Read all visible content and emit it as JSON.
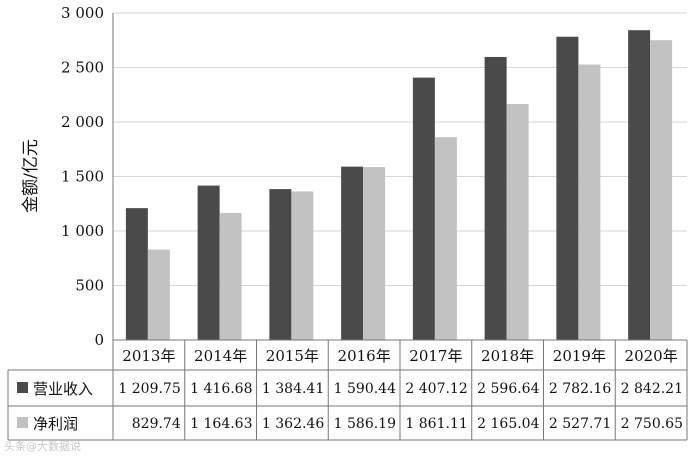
{
  "chart_data": {
    "type": "bar",
    "ylabel": "金额/亿元",
    "ylim": [
      0,
      3000
    ],
    "yticks": [
      0,
      500,
      1000,
      1500,
      2000,
      2500,
      3000
    ],
    "ytick_labels": [
      "0",
      "500",
      "1 000",
      "1 500",
      "2 000",
      "2 500",
      "3 000"
    ],
    "categories": [
      "2013年",
      "2014年",
      "2015年",
      "2016年",
      "2017年",
      "2018年",
      "2019年",
      "2020年"
    ],
    "series": [
      {
        "name": "营业收入",
        "color": "#4a4a4a",
        "values": [
          1209.75,
          1416.68,
          1384.41,
          1590.44,
          2407.12,
          2596.64,
          2782.16,
          2842.21
        ],
        "labels": [
          "1 209.75",
          "1 416.68",
          "1 384.41",
          "1 590.44",
          "2 407.12",
          "2 596.64",
          "2 782.16",
          "2 842.21"
        ]
      },
      {
        "name": "净利润",
        "color": "#c2c2c2",
        "values": [
          829.74,
          1164.63,
          1362.46,
          1586.19,
          1861.11,
          2165.04,
          2527.71,
          2750.65
        ],
        "labels": [
          "829.74",
          "1 164.63",
          "1 362.46",
          "1 586.19",
          "1 861.11",
          "2 165.04",
          "2 527.71",
          "2 750.65"
        ]
      }
    ],
    "grid": true,
    "legend": "data-table"
  },
  "watermark": "头条@大数据说"
}
